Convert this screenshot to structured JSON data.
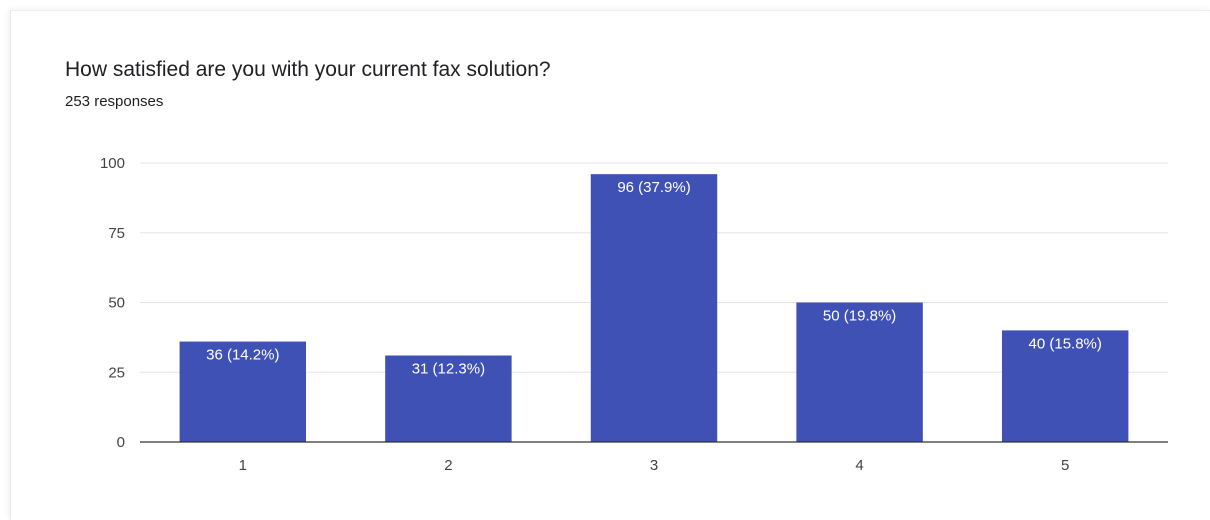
{
  "header": {
    "title": "How satisfied are you with your current fax solution?",
    "responses": "253 responses"
  },
  "chart_data": {
    "type": "bar",
    "title": "How satisfied are you with your current fax solution?",
    "xlabel": "",
    "ylabel": "",
    "categories": [
      "1",
      "2",
      "3",
      "4",
      "5"
    ],
    "values": [
      36,
      31,
      96,
      50,
      40
    ],
    "data_labels": [
      "36 (14.2%)",
      "31 (12.3%)",
      "96 (37.9%)",
      "50 (19.8%)",
      "40 (15.8%)"
    ],
    "ylim": [
      0,
      100
    ],
    "yticks": [
      "0",
      "25",
      "50",
      "75",
      "100"
    ],
    "grid": true,
    "legend": "none",
    "bar_color": "#3f51b5",
    "gridline_color": "#e5e5e5",
    "axis_color": "#333333"
  }
}
